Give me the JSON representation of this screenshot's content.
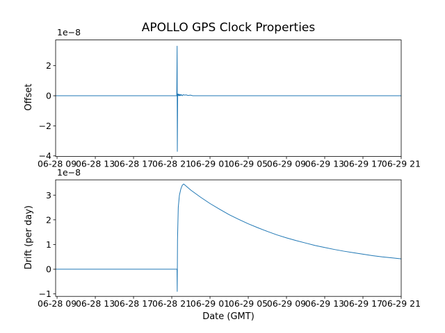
{
  "figure": {
    "title": "APOLLO GPS Clock Properties",
    "background": "#ffffff",
    "line_color": "#1f77b4"
  },
  "chart_data": [
    {
      "type": "line",
      "name": "offset-subplot",
      "title": "APOLLO GPS Clock Properties",
      "ylabel": "Offset",
      "xlabel": "",
      "y_offset_text": "1e−8",
      "y_unit_scale": 1e-08,
      "x_unit": "hours since 06-28 00:00 GMT",
      "xlim": [
        8.85,
        45.0
      ],
      "ylim": [
        -4.04,
        3.71
      ],
      "grid": false,
      "legend": null,
      "xticks": [
        9,
        13,
        17,
        21,
        25,
        29,
        33,
        37,
        41,
        45
      ],
      "xtick_labels": [
        "06-28 09",
        "06-28 13",
        "06-28 17",
        "06-28 21",
        "06-29 01",
        "06-29 05",
        "06-29 09",
        "06-29 13",
        "06-29 17",
        "06-29 21"
      ],
      "yticks": [
        2,
        0,
        -2,
        -4
      ],
      "ytick_labels": [
        "2",
        "0",
        "−2",
        "−4"
      ],
      "series": [
        {
          "name": "offset",
          "color": "#1f77b4",
          "x": [
            8.85,
            21.52,
            21.56,
            21.58,
            21.62,
            21.66,
            21.7,
            21.74,
            21.78,
            21.83,
            21.88,
            21.93,
            22.0,
            22.1,
            22.2,
            22.35,
            22.5,
            22.7,
            22.95,
            23.2,
            45.0
          ],
          "y": [
            0,
            0,
            3.3,
            -3.7,
            0.12,
            0.0,
            0.11,
            0.01,
            0.1,
            0.0,
            0.09,
            0.01,
            0.08,
            0.0,
            0.07,
            0.04,
            0.06,
            0.02,
            0.04,
            0.0,
            0.0
          ]
        }
      ]
    },
    {
      "type": "line",
      "name": "drift-subplot",
      "title": "",
      "ylabel": "Drift (per day)",
      "xlabel": "Date (GMT)",
      "y_offset_text": "1e−8",
      "y_unit_scale": 1e-08,
      "x_unit": "hours since 06-28 00:00 GMT",
      "xlim": [
        8.85,
        45.0
      ],
      "ylim": [
        -1.1,
        3.62
      ],
      "grid": false,
      "legend": null,
      "xticks": [
        9,
        13,
        17,
        21,
        25,
        29,
        33,
        37,
        41,
        45
      ],
      "xtick_labels": [
        "06-28 09",
        "06-28 13",
        "06-28 17",
        "06-28 21",
        "06-29 01",
        "06-29 05",
        "06-29 09",
        "06-29 13",
        "06-29 17",
        "06-29 21"
      ],
      "yticks": [
        3,
        2,
        1,
        0,
        -1
      ],
      "ytick_labels": [
        "3",
        "2",
        "1",
        "0",
        "−1"
      ],
      "series": [
        {
          "name": "drift",
          "color": "#1f77b4",
          "x": [
            8.85,
            21.5,
            21.55,
            21.57,
            21.6,
            21.68,
            21.8,
            21.95,
            22.1,
            22.25,
            23,
            24,
            25,
            26,
            27,
            28,
            29,
            30,
            31,
            32,
            33,
            34,
            35,
            36,
            37,
            38,
            39,
            40,
            41,
            42,
            43,
            44,
            45
          ],
          "y": [
            0,
            0,
            0,
            -0.9,
            1.2,
            2.5,
            3.0,
            3.25,
            3.4,
            3.45,
            3.2,
            2.92,
            2.66,
            2.43,
            2.21,
            2.02,
            1.84,
            1.68,
            1.53,
            1.39,
            1.27,
            1.16,
            1.06,
            0.96,
            0.88,
            0.8,
            0.73,
            0.67,
            0.61,
            0.55,
            0.5,
            0.46,
            0.42
          ]
        }
      ]
    }
  ]
}
